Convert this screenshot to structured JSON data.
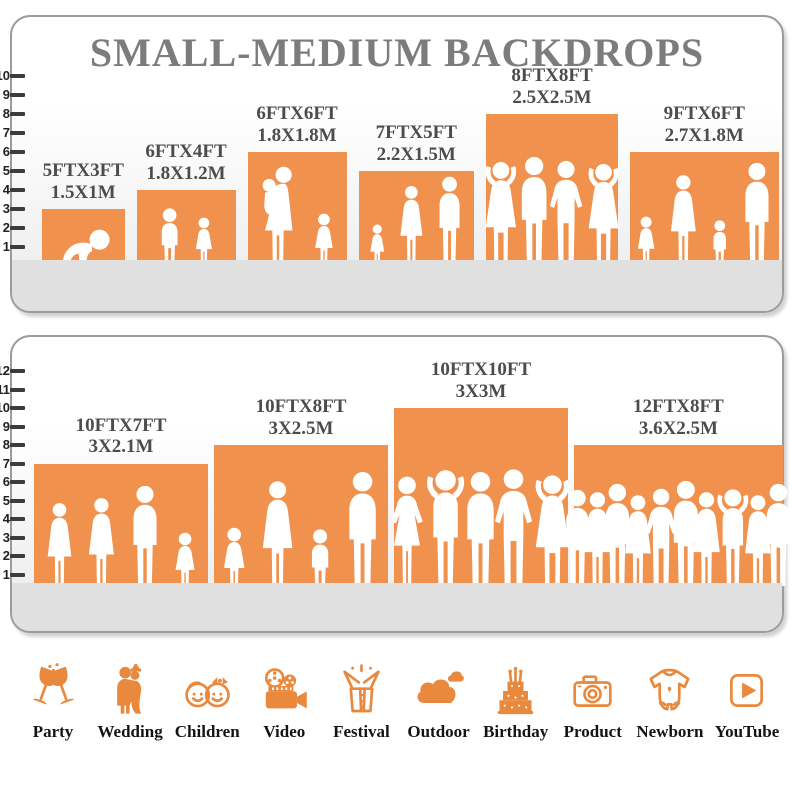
{
  "title": "SMALL-MEDIUM BACKDROPS",
  "colors": {
    "bar": "#F0914E",
    "icon": "#E9893E",
    "title_text": "#7C7C7C",
    "label_text": "#4C4C4C",
    "panel_border": "#9B9B9B",
    "ground": "#E0E0E0"
  },
  "chart_data": [
    {
      "type": "bar",
      "name": "small-backdrops",
      "y_axis_ticks": [
        1,
        2,
        3,
        4,
        5,
        6,
        7,
        8,
        9,
        10
      ],
      "unit": "ft",
      "bars": [
        {
          "size_ft": "5FTX3FT",
          "size_m": "1.5X1M",
          "width_ft": 5,
          "height_ft": 3,
          "figures": [
            {
              "t": "baby",
              "s": 0.72
            }
          ]
        },
        {
          "size_ft": "6FTX4FT",
          "size_m": "1.8X1.2M",
          "width_ft": 6,
          "height_ft": 4,
          "figures": [
            {
              "t": "boy",
              "s": 0.82
            },
            {
              "t": "girl",
              "s": 0.68
            }
          ]
        },
        {
          "size_ft": "6FTX6FT",
          "size_m": "1.8X1.8M",
          "width_ft": 6,
          "height_ft": 6,
          "figures": [
            {
              "t": "woman-carry",
              "s": 0.93
            },
            {
              "t": "girl",
              "s": 0.48
            }
          ]
        },
        {
          "size_ft": "7FTX5FT",
          "size_m": "2.2X1.5M",
          "width_ft": 7,
          "height_ft": 5,
          "figures": [
            {
              "t": "girl",
              "s": 0.46
            },
            {
              "t": "woman",
              "s": 0.9
            },
            {
              "t": "man",
              "s": 1.0
            }
          ]
        },
        {
          "size_ft": "8FTX8FT",
          "size_m": "2.5X2.5M",
          "width_ft": 8,
          "height_ft": 8,
          "figures": [
            {
              "t": "woman-up",
              "s": 0.73
            },
            {
              "t": "man",
              "s": 0.75
            },
            {
              "t": "man-hips",
              "s": 0.73
            },
            {
              "t": "woman-up",
              "s": 0.72
            }
          ]
        },
        {
          "size_ft": "9FTX6FT",
          "size_m": "2.7X1.8M",
          "width_ft": 9,
          "height_ft": 6,
          "figures": [
            {
              "t": "girl",
              "s": 0.45
            },
            {
              "t": "woman",
              "s": 0.84
            },
            {
              "t": "boy",
              "s": 0.42
            },
            {
              "t": "man",
              "s": 0.95
            }
          ]
        }
      ]
    },
    {
      "type": "bar",
      "name": "medium-backdrops",
      "y_axis_ticks": [
        1,
        2,
        3,
        4,
        5,
        6,
        7,
        8,
        9,
        10,
        11,
        12
      ],
      "unit": "ft",
      "bars": [
        {
          "size_ft": "10FTX7FT",
          "size_m": "3X2.1M",
          "width_ft": 10,
          "height_ft": 7,
          "figures": [
            {
              "t": "woman",
              "s": 0.72
            },
            {
              "t": "woman",
              "s": 0.76
            },
            {
              "t": "man",
              "s": 0.86
            },
            {
              "t": "girl",
              "s": 0.47
            }
          ]
        },
        {
          "size_ft": "10FTX8FT",
          "size_m": "3X2.5M",
          "width_ft": 10,
          "height_ft": 8,
          "figures": [
            {
              "t": "girl",
              "s": 0.44
            },
            {
              "t": "woman",
              "s": 0.78
            },
            {
              "t": "boy",
              "s": 0.43
            },
            {
              "t": "man",
              "s": 0.85
            }
          ]
        },
        {
          "size_ft": "10FTX10FT",
          "size_m": "3X3M",
          "width_ft": 10,
          "height_ft": 10,
          "figures": [
            {
              "t": "woman-hips",
              "s": 0.66
            },
            {
              "t": "man-up",
              "s": 0.7
            },
            {
              "t": "man",
              "s": 0.67
            },
            {
              "t": "man-hips",
              "s": 0.7
            },
            {
              "t": "woman-up",
              "s": 0.67
            }
          ]
        },
        {
          "size_ft": "12FTX8FT",
          "size_m": "3.6X2.5M",
          "width_ft": 12,
          "height_ft": 8,
          "figures": [
            {
              "t": "man",
              "s": 0.72
            },
            {
              "t": "woman",
              "s": 0.7
            },
            {
              "t": "man",
              "s": 0.76
            },
            {
              "t": "woman",
              "s": 0.68
            },
            {
              "t": "man-hips",
              "s": 0.74
            },
            {
              "t": "man",
              "s": 0.78
            },
            {
              "t": "woman",
              "s": 0.7
            },
            {
              "t": "man-up",
              "s": 0.74
            },
            {
              "t": "woman",
              "s": 0.68
            },
            {
              "t": "man",
              "s": 0.76
            }
          ]
        }
      ]
    }
  ],
  "categories": [
    {
      "label": "Party"
    },
    {
      "label": "Wedding"
    },
    {
      "label": "Children"
    },
    {
      "label": "Video"
    },
    {
      "label": "Festival"
    },
    {
      "label": "Outdoor"
    },
    {
      "label": "Birthday"
    },
    {
      "label": "Product"
    },
    {
      "label": "Newborn"
    },
    {
      "label": "YouTube"
    }
  ]
}
